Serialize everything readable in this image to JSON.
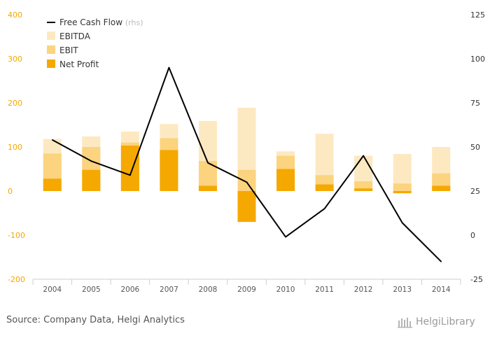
{
  "chart_data": {
    "type": "bar",
    "categories": [
      "2004",
      "2005",
      "2006",
      "2007",
      "2008",
      "2009",
      "2010",
      "2011",
      "2012",
      "2013",
      "2014"
    ],
    "series": [
      {
        "name": "EBITDA",
        "kind": "bar",
        "axis": "left",
        "color": "#fde9c1",
        "values": [
          118,
          124,
          135,
          152,
          159,
          189,
          90,
          130,
          80,
          84,
          100
        ]
      },
      {
        "name": "EBIT",
        "kind": "bar",
        "axis": "left",
        "color": "#fcd37e",
        "values": [
          85,
          100,
          110,
          120,
          68,
          48,
          80,
          36,
          22,
          17,
          40
        ]
      },
      {
        "name": "Net Profit",
        "kind": "bar",
        "axis": "left",
        "color": "#f5a800",
        "values": [
          28,
          48,
          103,
          93,
          12,
          -70,
          50,
          15,
          6,
          -5,
          12
        ]
      },
      {
        "name": "Free Cash Flow",
        "name_note": "(rhs)",
        "kind": "line",
        "axis": "right",
        "color": "#000000",
        "values": [
          54,
          42,
          34,
          95,
          41,
          30,
          -1,
          15,
          45,
          7,
          -15
        ]
      }
    ],
    "ylim_left": [
      -200,
      400
    ],
    "yticks_left": [
      -200,
      -100,
      0,
      100,
      200,
      300,
      400
    ],
    "ylim_right": [
      -25,
      125
    ],
    "yticks_right": [
      -25,
      0,
      25,
      50,
      75,
      100,
      125
    ],
    "legend_position": "top-left",
    "grid": false
  },
  "footer": {
    "source": "Source: Company Data, Helgi Analytics",
    "brand": "HelgiLibrary"
  },
  "colors": {
    "accent": "#f5a800",
    "axis_left_text": "#f3a800",
    "line": "#000000"
  }
}
